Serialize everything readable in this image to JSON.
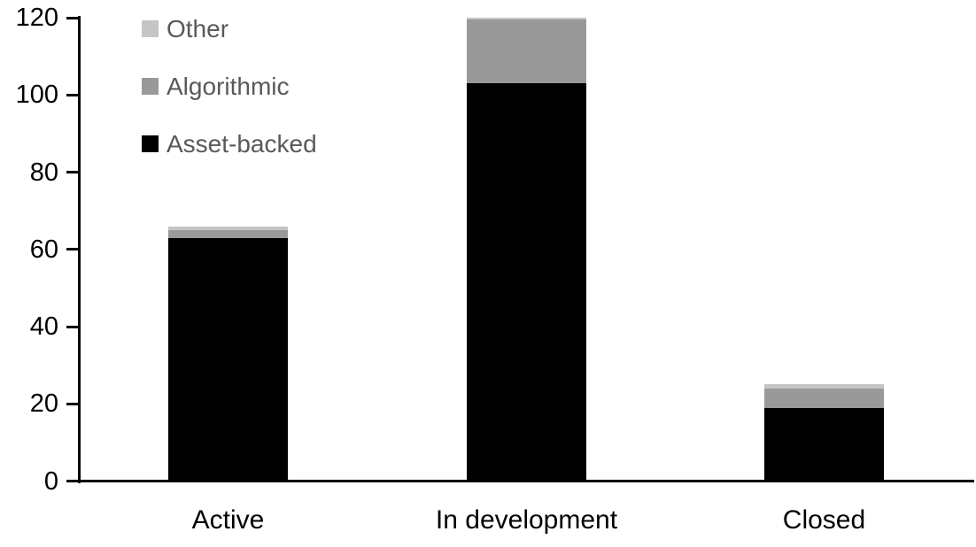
{
  "chart_data": {
    "type": "bar",
    "stacked": true,
    "title": "",
    "xlabel": "",
    "ylabel": "",
    "categories": [
      "Active",
      "In development",
      "Closed"
    ],
    "series": [
      {
        "name": "Asset-backed",
        "color": "#000000",
        "values": [
          63,
          103,
          19
        ]
      },
      {
        "name": "Algorithmic",
        "color": "#999999",
        "values": [
          2,
          16.5,
          5
        ]
      },
      {
        "name": "Other",
        "color": "#C5C5C5",
        "values": [
          1,
          0.5,
          1
        ]
      }
    ],
    "totals": [
      66,
      120,
      25
    ],
    "ylim": [
      0,
      120
    ],
    "yticks": [
      0,
      20,
      40,
      60,
      80,
      100,
      120
    ],
    "grid": false,
    "legend": {
      "position": "top-left",
      "entries": [
        "Other",
        "Algorithmic",
        "Asset-backed"
      ]
    },
    "axis_color": "#000000",
    "tick_label_color": "#000000",
    "category_label_color": "#000000",
    "legend_text_color": "#595959"
  }
}
